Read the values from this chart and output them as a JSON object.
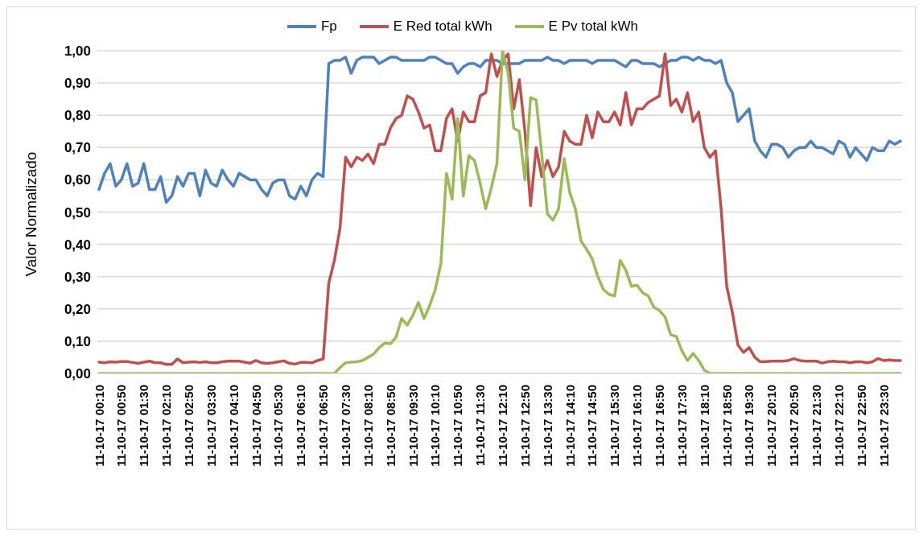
{
  "chart_data": {
    "type": "line",
    "ylabel": "Valor Normalizado",
    "categories": [
      "11-10-17 00:10",
      null,
      null,
      null,
      "11-10-17 00:50",
      null,
      null,
      null,
      "11-10-17 01:30",
      null,
      null,
      null,
      "11-10-17 02:10",
      null,
      null,
      null,
      "11-10-17 02:50",
      null,
      null,
      null,
      "11-10-17 03:30",
      null,
      null,
      null,
      "11-10-17 04:10",
      null,
      null,
      null,
      "11-10-17 04:50",
      null,
      null,
      null,
      "11-10-17 05:30",
      null,
      null,
      null,
      "11-10-17 06:10",
      null,
      null,
      null,
      "11-10-17 06:50",
      null,
      null,
      null,
      "11-10-17 07:30",
      null,
      null,
      null,
      "11-10-17 08:10",
      null,
      null,
      null,
      "11-10-17 08:50",
      null,
      null,
      null,
      "11-10-17 09:30",
      null,
      null,
      null,
      "11-10-17 10:10",
      null,
      null,
      null,
      "11-10-17 10:50",
      null,
      null,
      null,
      "11-10-17 11:30",
      null,
      null,
      null,
      "11-10-17 12:10",
      null,
      null,
      null,
      "11-10-17 12:50",
      null,
      null,
      null,
      "11-10-17 13:30",
      null,
      null,
      null,
      "11-10-17 14:10",
      null,
      null,
      null,
      "11-10-17 14:50",
      null,
      null,
      null,
      "11-10-17 15:30",
      null,
      null,
      null,
      "11-10-17 16:10",
      null,
      null,
      null,
      "11-10-17 16:50",
      null,
      null,
      null,
      "11-10-17 17:30",
      null,
      null,
      null,
      "11-10-17 18:10",
      null,
      null,
      null,
      "11-10-17 18:50",
      null,
      null,
      null,
      "11-10-17 19:30",
      null,
      null,
      null,
      "11-10-17 20:10",
      null,
      null,
      null,
      "11-10-17 20:50",
      null,
      null,
      null,
      "11-10-17 21:30",
      null,
      null,
      null,
      "11-10-17 22:10",
      null,
      null,
      null,
      "11-10-17 22:50",
      null,
      null,
      null,
      "11-10-17 23:30",
      null,
      null,
      null
    ],
    "series": [
      {
        "name": "Fp",
        "color": "#4f81bd",
        "values": [
          0.57,
          0.62,
          0.65,
          0.58,
          0.6,
          0.65,
          0.58,
          0.59,
          0.65,
          0.57,
          0.57,
          0.61,
          0.53,
          0.55,
          0.61,
          0.58,
          0.62,
          0.62,
          0.55,
          0.63,
          0.59,
          0.58,
          0.63,
          0.6,
          0.58,
          0.62,
          0.61,
          0.6,
          0.6,
          0.57,
          0.55,
          0.59,
          0.6,
          0.6,
          0.55,
          0.54,
          0.58,
          0.55,
          0.6,
          0.62,
          0.61,
          0.96,
          0.97,
          0.97,
          0.98,
          0.93,
          0.97,
          0.98,
          0.98,
          0.98,
          0.96,
          0.97,
          0.98,
          0.98,
          0.97,
          0.97,
          0.97,
          0.97,
          0.97,
          0.98,
          0.98,
          0.97,
          0.96,
          0.96,
          0.93,
          0.95,
          0.96,
          0.96,
          0.95,
          0.97,
          0.97,
          0.97,
          0.96,
          0.96,
          0.96,
          0.96,
          0.97,
          0.97,
          0.97,
          0.97,
          0.98,
          0.97,
          0.97,
          0.96,
          0.97,
          0.97,
          0.97,
          0.97,
          0.96,
          0.97,
          0.97,
          0.97,
          0.97,
          0.96,
          0.95,
          0.97,
          0.97,
          0.96,
          0.96,
          0.96,
          0.95,
          0.96,
          0.97,
          0.97,
          0.98,
          0.98,
          0.97,
          0.98,
          0.97,
          0.97,
          0.96,
          0.97,
          0.9,
          0.87,
          0.78,
          0.8,
          0.82,
          0.72,
          0.69,
          0.67,
          0.71,
          0.71,
          0.7,
          0.67,
          0.69,
          0.7,
          0.7,
          0.72,
          0.7,
          0.7,
          0.69,
          0.68,
          0.72,
          0.71,
          0.67,
          0.7,
          0.68,
          0.66,
          0.7,
          0.69,
          0.69,
          0.72,
          0.71,
          0.72
        ]
      },
      {
        "name": "E Red total kWh",
        "color": "#c0504d",
        "values": [
          0.035,
          0.033,
          0.036,
          0.035,
          0.037,
          0.037,
          0.034,
          0.031,
          0.035,
          0.038,
          0.033,
          0.033,
          0.028,
          0.028,
          0.045,
          0.033,
          0.035,
          0.036,
          0.034,
          0.036,
          0.033,
          0.033,
          0.036,
          0.038,
          0.038,
          0.038,
          0.035,
          0.032,
          0.04,
          0.033,
          0.031,
          0.033,
          0.036,
          0.039,
          0.031,
          0.029,
          0.034,
          0.034,
          0.033,
          0.04,
          0.045,
          0.28,
          0.35,
          0.45,
          0.67,
          0.64,
          0.67,
          0.66,
          0.68,
          0.65,
          0.71,
          0.71,
          0.76,
          0.79,
          0.8,
          0.86,
          0.85,
          0.81,
          0.76,
          0.77,
          0.69,
          0.69,
          0.79,
          0.82,
          0.72,
          0.81,
          0.78,
          0.78,
          0.86,
          0.87,
          0.99,
          0.92,
          0.97,
          0.99,
          0.82,
          0.91,
          0.75,
          0.52,
          0.7,
          0.61,
          0.66,
          0.61,
          0.64,
          0.75,
          0.72,
          0.71,
          0.71,
          0.8,
          0.73,
          0.81,
          0.78,
          0.78,
          0.81,
          0.77,
          0.87,
          0.77,
          0.82,
          0.82,
          0.84,
          0.85,
          0.86,
          0.99,
          0.83,
          0.85,
          0.81,
          0.87,
          0.78,
          0.81,
          0.7,
          0.67,
          0.69,
          0.51,
          0.27,
          0.19,
          0.088,
          0.065,
          0.08,
          0.05,
          0.036,
          0.037,
          0.038,
          0.038,
          0.038,
          0.04,
          0.046,
          0.04,
          0.038,
          0.038,
          0.038,
          0.032,
          0.036,
          0.038,
          0.036,
          0.036,
          0.033,
          0.036,
          0.036,
          0.033,
          0.036,
          0.046,
          0.04,
          0.042,
          0.04,
          0.04
        ]
      },
      {
        "name": "E Pv total kWh",
        "color": "#9bbb59",
        "values": [
          0,
          0,
          0,
          0,
          0,
          0,
          0,
          0,
          0,
          0,
          0,
          0,
          0,
          0,
          0,
          0,
          0,
          0,
          0,
          0,
          0,
          0,
          0,
          0,
          0,
          0,
          0,
          0,
          0,
          0,
          0,
          0,
          0,
          0,
          0,
          0,
          0,
          0,
          0,
          0,
          0,
          0,
          0,
          0.018,
          0.033,
          0.035,
          0.036,
          0.04,
          0.05,
          0.06,
          0.08,
          0.094,
          0.092,
          0.112,
          0.17,
          0.15,
          0.18,
          0.22,
          0.17,
          0.21,
          0.26,
          0.34,
          0.62,
          0.54,
          0.79,
          0.55,
          0.675,
          0.66,
          0.59,
          0.51,
          0.575,
          0.65,
          1.0,
          0.93,
          0.76,
          0.75,
          0.6,
          0.855,
          0.847,
          0.68,
          0.495,
          0.475,
          0.51,
          0.665,
          0.56,
          0.51,
          0.41,
          0.385,
          0.355,
          0.3,
          0.26,
          0.245,
          0.24,
          0.35,
          0.32,
          0.27,
          0.273,
          0.25,
          0.24,
          0.205,
          0.195,
          0.175,
          0.12,
          0.115,
          0.07,
          0.04,
          0.062,
          0.04,
          0.01,
          0,
          0,
          0,
          0,
          0,
          0,
          0,
          0,
          0,
          0,
          0,
          0,
          0,
          0,
          0,
          0,
          0,
          0,
          0,
          0,
          0,
          0,
          0,
          0,
          0,
          0,
          0,
          0,
          0,
          0,
          0,
          0,
          0,
          0,
          0
        ]
      }
    ],
    "ylim": [
      0,
      1
    ],
    "yticks": [
      {
        "value": 0,
        "label": "0,00"
      },
      {
        "value": 0.1,
        "label": "0,10"
      },
      {
        "value": 0.2,
        "label": "0,20"
      },
      {
        "value": 0.3,
        "label": "0,30"
      },
      {
        "value": 0.4,
        "label": "0,40"
      },
      {
        "value": 0.5,
        "label": "0,50"
      },
      {
        "value": 0.6,
        "label": "0,60"
      },
      {
        "value": 0.7,
        "label": "0,70"
      },
      {
        "value": 0.8,
        "label": "0,80"
      },
      {
        "value": 0.9,
        "label": "0,90"
      },
      {
        "value": 1,
        "label": "1,00"
      }
    ],
    "grid": "y",
    "legend": "top",
    "marker": "none",
    "line_style": "solid"
  }
}
